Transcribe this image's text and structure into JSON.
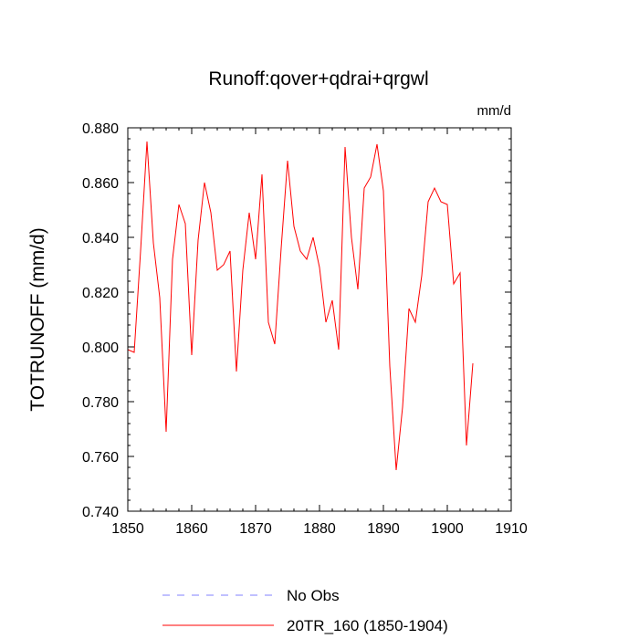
{
  "chart_data": {
    "type": "line",
    "title": "Runoff:qover+qdrai+qrgwl",
    "units_label": "mm/d",
    "xlabel": "",
    "ylabel": "TOTRUNOFF  (mm/d)",
    "xlim": [
      1850,
      1910
    ],
    "ylim": [
      0.74,
      0.88
    ],
    "x_ticks": [
      1850,
      1860,
      1870,
      1880,
      1890,
      1900,
      1910
    ],
    "y_ticks": [
      0.74,
      0.76,
      0.78,
      0.8,
      0.82,
      0.84,
      0.86,
      0.88
    ],
    "y_tick_labels": [
      "0.740",
      "0.760",
      "0.780",
      "0.800",
      "0.820",
      "0.840",
      "0.860",
      "0.880"
    ],
    "x_tick_labels": [
      "1850",
      "1860",
      "1870",
      "1880",
      "1890",
      "1900",
      "1910"
    ],
    "grid": false,
    "legend_position": "bottom",
    "series": [
      {
        "name": "No Obs",
        "color": "#8080ff",
        "style": "dashed",
        "x": [],
        "values": []
      },
      {
        "name": "20TR_160 (1850-1904)",
        "color": "#ff0000",
        "style": "solid",
        "x": [
          1850,
          1851,
          1852,
          1853,
          1854,
          1855,
          1856,
          1857,
          1858,
          1859,
          1860,
          1861,
          1862,
          1863,
          1864,
          1865,
          1866,
          1867,
          1868,
          1869,
          1870,
          1871,
          1872,
          1873,
          1874,
          1875,
          1876,
          1877,
          1878,
          1879,
          1880,
          1881,
          1882,
          1883,
          1884,
          1885,
          1886,
          1887,
          1888,
          1889,
          1890,
          1891,
          1892,
          1893,
          1894,
          1895,
          1896,
          1897,
          1898,
          1899,
          1900,
          1901,
          1902,
          1903,
          1904
        ],
        "values": [
          0.799,
          0.798,
          0.835,
          0.875,
          0.838,
          0.818,
          0.769,
          0.832,
          0.852,
          0.845,
          0.797,
          0.839,
          0.86,
          0.849,
          0.828,
          0.83,
          0.835,
          0.791,
          0.828,
          0.849,
          0.832,
          0.863,
          0.809,
          0.801,
          0.836,
          0.868,
          0.844,
          0.835,
          0.832,
          0.84,
          0.829,
          0.809,
          0.817,
          0.799,
          0.873,
          0.84,
          0.821,
          0.858,
          0.862,
          0.874,
          0.857,
          0.793,
          0.755,
          0.778,
          0.814,
          0.809,
          0.826,
          0.853,
          0.858,
          0.853,
          0.852,
          0.823,
          0.827,
          0.764,
          0.794
        ]
      }
    ]
  }
}
